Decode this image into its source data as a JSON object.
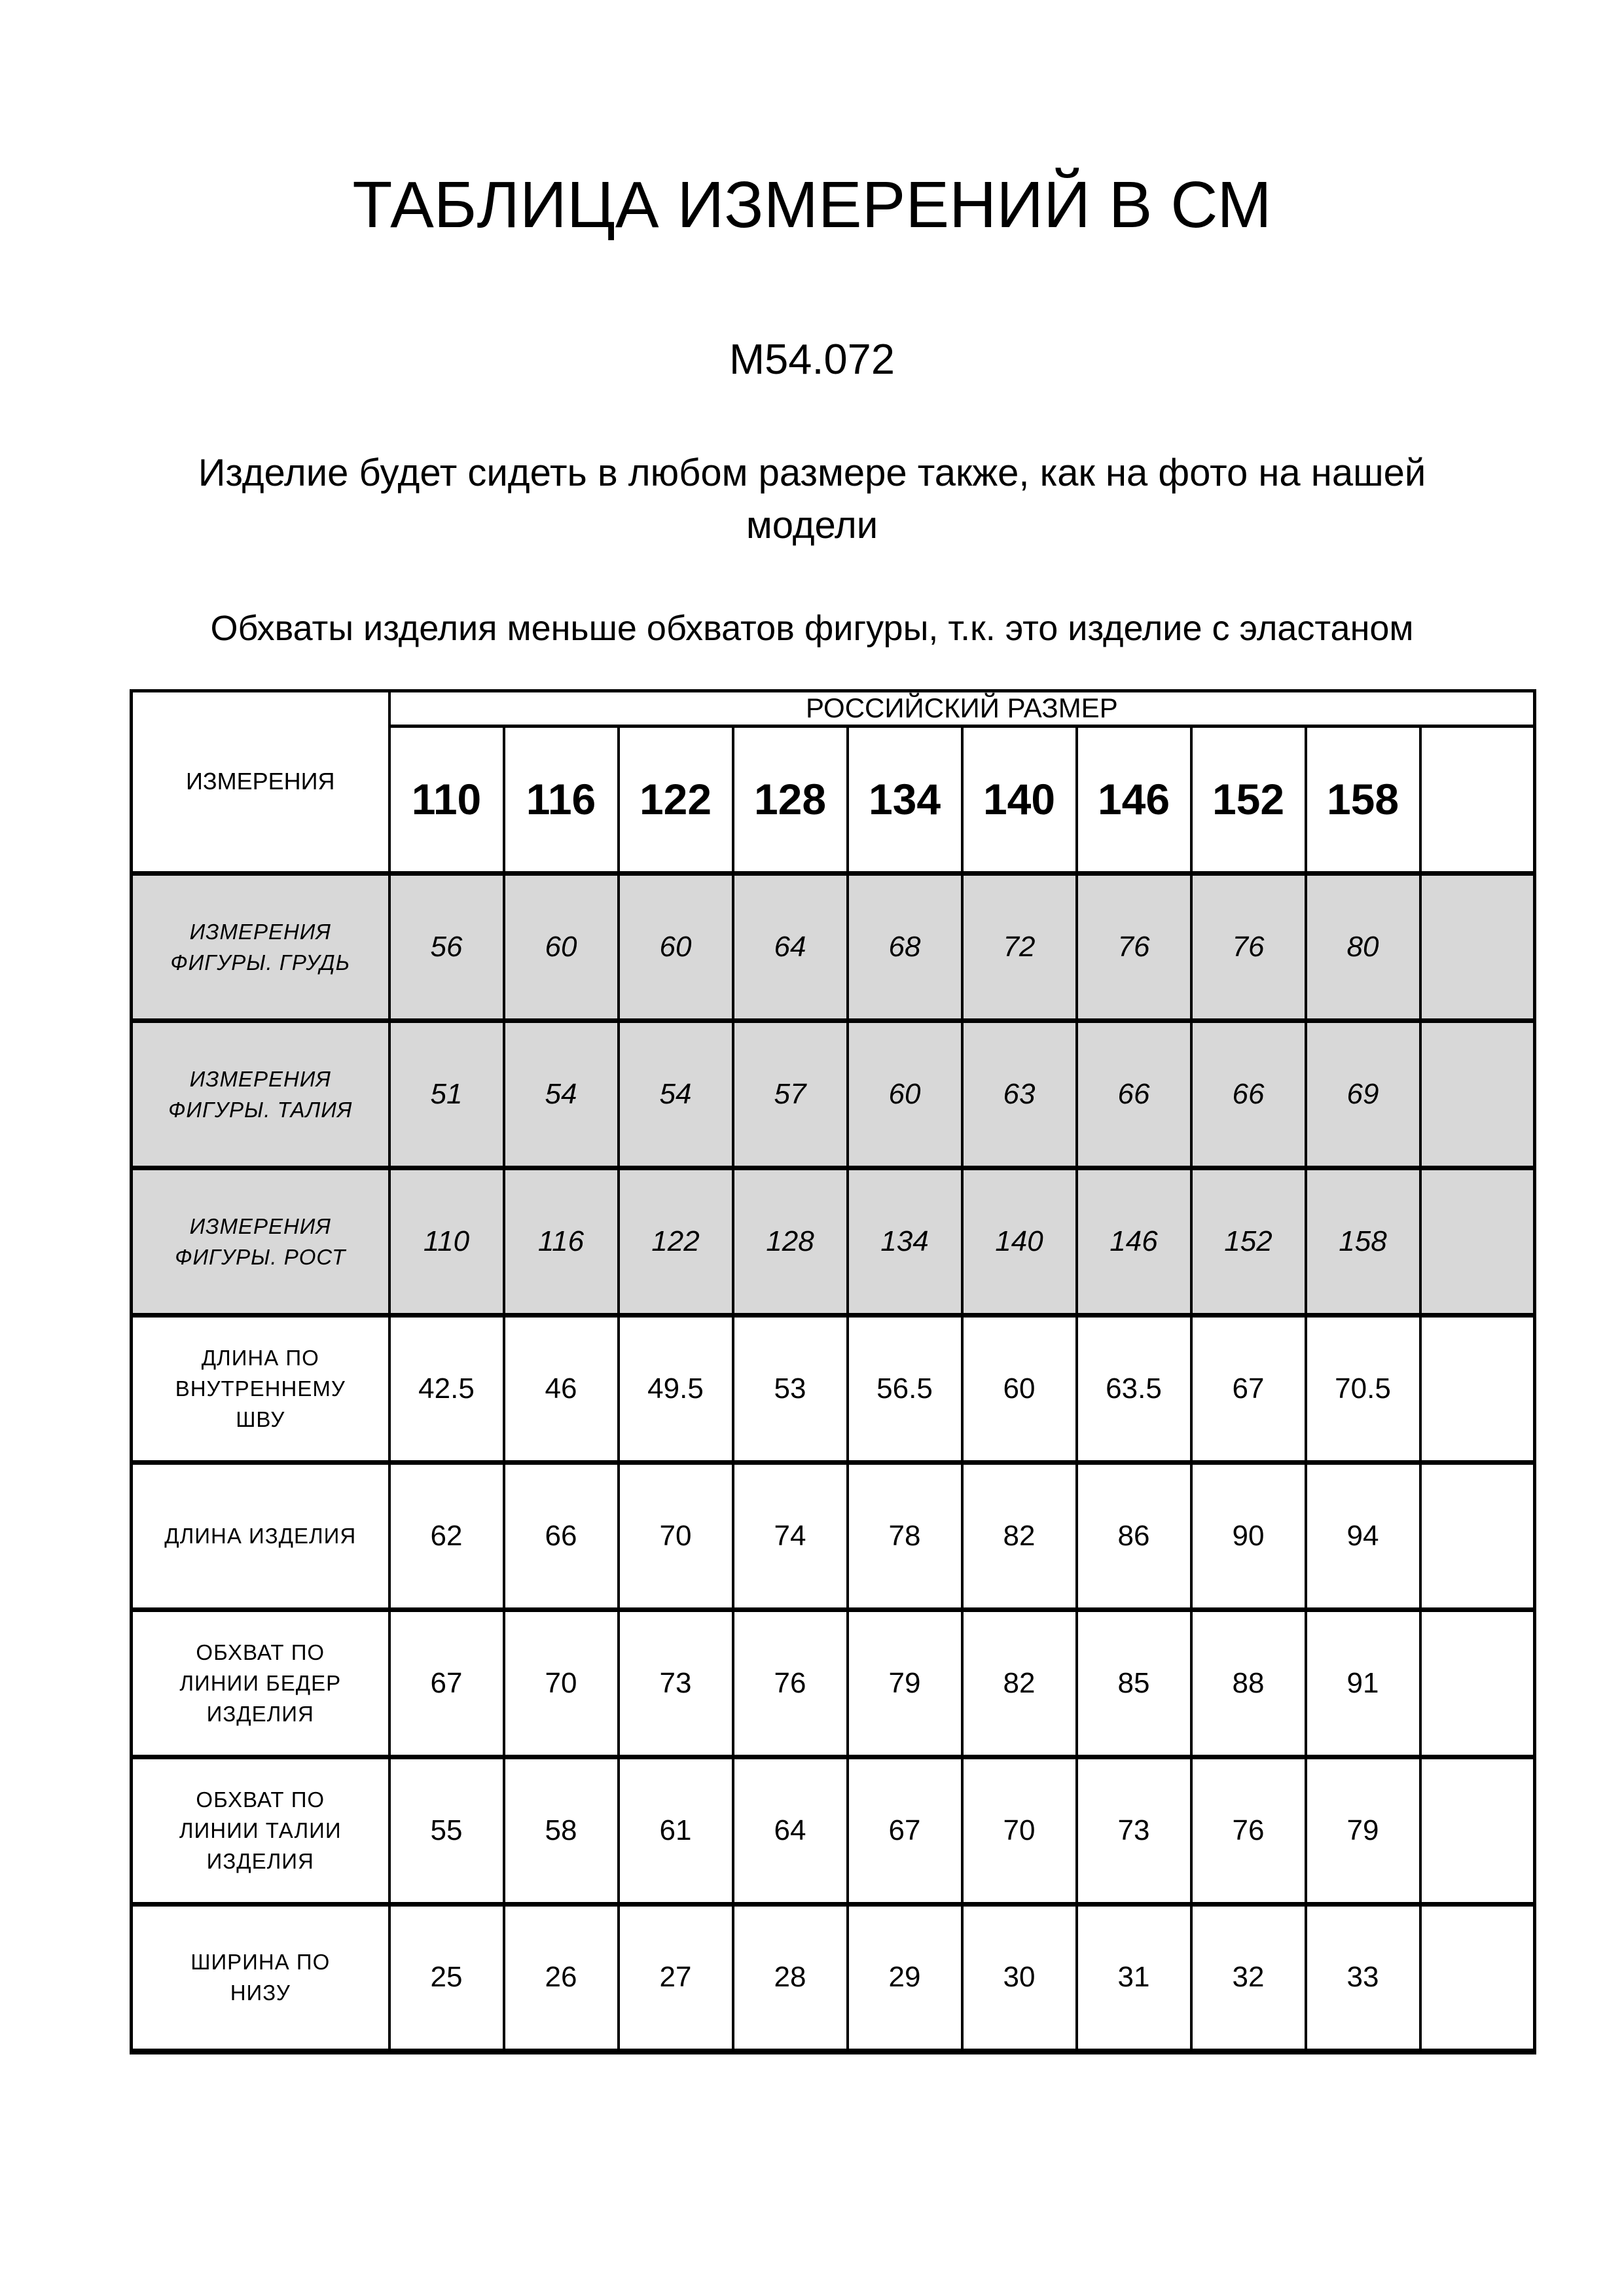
{
  "page": {
    "title": "ТАБЛИЦА ИЗМЕРЕНИЙ В СМ",
    "model": "М54.072",
    "note1": "Изделие будет сидеть в любом размере также, как на фото на нашей модели",
    "note2": "Обхваты изделия меньше обхватов фигуры, т.к. это изделие с эластаном"
  },
  "table": {
    "corner_label": "ИЗМЕРЕНИЯ",
    "group_header": "РОССИЙСКИЙ РАЗМЕР",
    "sizes": [
      "110",
      "116",
      "122",
      "128",
      "134",
      "140",
      "146",
      "152",
      "158"
    ],
    "rows": [
      {
        "label": "ИЗМЕРЕНИЯ ФИГУРЫ. ГРУДЬ",
        "style": "figure",
        "values": [
          "56",
          "60",
          "60",
          "64",
          "68",
          "72",
          "76",
          "76",
          "80"
        ]
      },
      {
        "label": "ИЗМЕРЕНИЯ ФИГУРЫ. ТАЛИЯ",
        "style": "figure",
        "values": [
          "51",
          "54",
          "54",
          "57",
          "60",
          "63",
          "66",
          "66",
          "69"
        ]
      },
      {
        "label": "ИЗМЕРЕНИЯ ФИГУРЫ. РОСТ",
        "style": "figure",
        "values": [
          "110",
          "116",
          "122",
          "128",
          "134",
          "140",
          "146",
          "152",
          "158"
        ]
      },
      {
        "label": "ДЛИНА ПО ВНУТРЕННЕМУ ШВУ",
        "style": "product",
        "values": [
          "42.5",
          "46",
          "49.5",
          "53",
          "56.5",
          "60",
          "63.5",
          "67",
          "70.5"
        ]
      },
      {
        "label": "ДЛИНА ИЗДЕЛИЯ",
        "style": "product",
        "values": [
          "62",
          "66",
          "70",
          "74",
          "78",
          "82",
          "86",
          "90",
          "94"
        ]
      },
      {
        "label": "ОБХВАТ ПО ЛИНИИ БЕДЕР ИЗДЕЛИЯ",
        "style": "product",
        "values": [
          "67",
          "70",
          "73",
          "76",
          "79",
          "82",
          "85",
          "88",
          "91"
        ]
      },
      {
        "label": "ОБХВАТ ПО ЛИНИИ ТАЛИИ ИЗДЕЛИЯ",
        "style": "product",
        "values": [
          "55",
          "58",
          "61",
          "64",
          "67",
          "70",
          "73",
          "76",
          "79"
        ]
      },
      {
        "label": "ШИРИНА ПО НИЗУ",
        "style": "product",
        "values": [
          "25",
          "26",
          "27",
          "28",
          "29",
          "30",
          "31",
          "32",
          "33"
        ]
      }
    ],
    "colors": {
      "figure_row_bg": "#d8d8d8",
      "text": "#000000"
    }
  }
}
